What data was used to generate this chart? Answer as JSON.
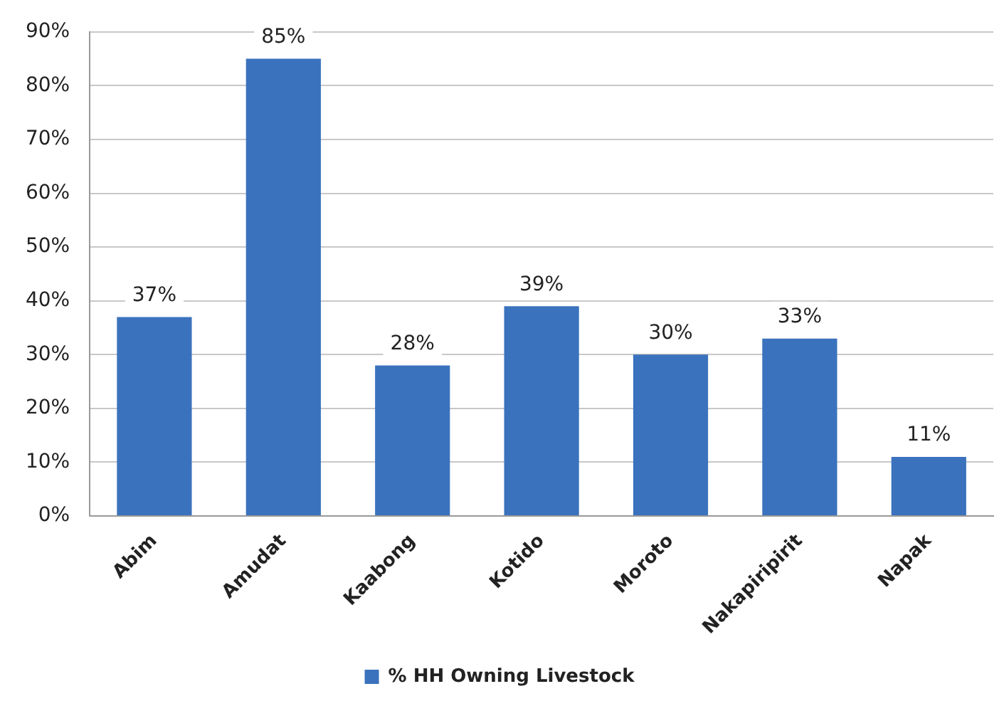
{
  "chart_data": {
    "type": "bar",
    "categories": [
      "Abim",
      "Amudat",
      "Kaabong",
      "Kotido",
      "Moroto",
      "Nakapiripirit",
      "Napak"
    ],
    "series": [
      {
        "name": "% HH Owning Livestock",
        "color": "#3a72bd",
        "values": [
          37,
          85,
          28,
          39,
          30,
          33,
          11
        ],
        "value_labels": [
          "37%",
          "85%",
          "28%",
          "39%",
          "30%",
          "33%",
          "11%"
        ]
      }
    ],
    "ylim": [
      0,
      90
    ],
    "yticks": [
      {
        "value": 0,
        "label": "0%"
      },
      {
        "value": 10,
        "label": "10%"
      },
      {
        "value": 20,
        "label": "20%"
      },
      {
        "value": 30,
        "label": "30%"
      },
      {
        "value": 40,
        "label": "40%"
      },
      {
        "value": 50,
        "label": "50%"
      },
      {
        "value": 60,
        "label": "60%"
      },
      {
        "value": 70,
        "label": "70%"
      },
      {
        "value": 80,
        "label": "80%"
      },
      {
        "value": 90,
        "label": "90%"
      }
    ],
    "grid": "y",
    "legend": "bottom"
  }
}
